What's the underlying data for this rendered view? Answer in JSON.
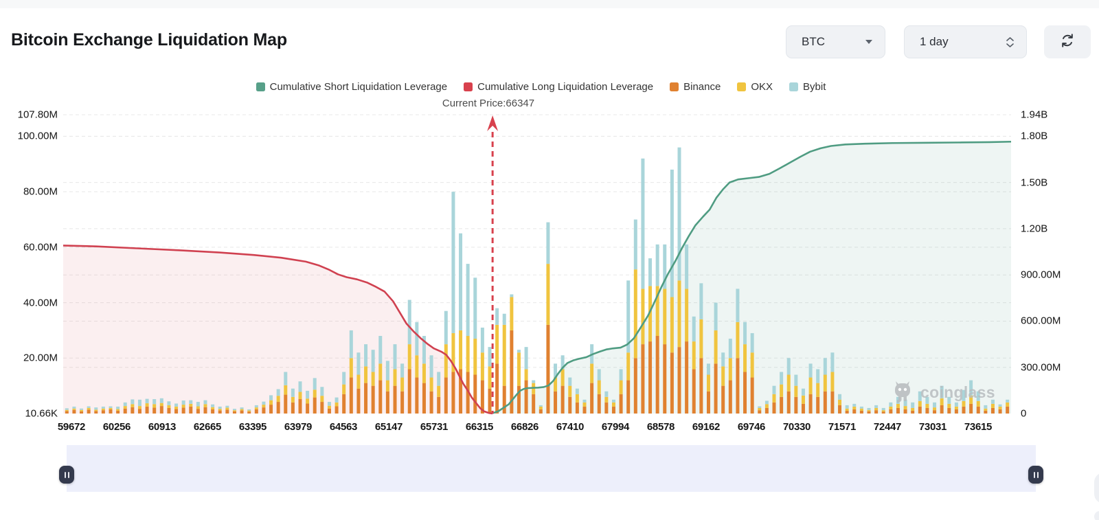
{
  "header": {
    "title": "Bitcoin Exchange Liquidation Map"
  },
  "controls": {
    "symbol_select": {
      "value": "BTC"
    },
    "interval_select": {
      "value": "1 day"
    },
    "refresh_icon": "refresh-arrows"
  },
  "legend": {
    "items": [
      {
        "label": "Cumulative Short Liquidation Leverage",
        "color": "#57a089"
      },
      {
        "label": "Cumulative Long Liquidation Leverage",
        "color": "#d8414d"
      },
      {
        "label": "Binance",
        "color": "#e08130"
      },
      {
        "label": "OKX",
        "color": "#f0c43f"
      },
      {
        "label": "Bybit",
        "color": "#a9d5da"
      }
    ]
  },
  "annotation": {
    "current_price_label": "Current Price:66347"
  },
  "watermark": {
    "text": "coinglass"
  },
  "chart_data": {
    "type": "bar",
    "title": "Bitcoin Exchange Liquidation Map",
    "grid": true,
    "legend_position": "top",
    "x_axis_labels": [
      "59672",
      "60256",
      "60913",
      "62665",
      "63395",
      "63979",
      "64563",
      "65147",
      "65731",
      "66315",
      "66826",
      "67410",
      "67994",
      "68578",
      "69162",
      "69746",
      "70330",
      "71571",
      "72447",
      "73031",
      "73615"
    ],
    "left_axis": {
      "unit": "M",
      "max": 107.8,
      "ticks": [
        {
          "label": "107.80M",
          "value": 107.8
        },
        {
          "label": "100.00M",
          "value": 100
        },
        {
          "label": "80.00M",
          "value": 80
        },
        {
          "label": "60.00M",
          "value": 60
        },
        {
          "label": "40.00M",
          "value": 40
        },
        {
          "label": "20.00M",
          "value": 20
        },
        {
          "label": "10.66K",
          "value": 0
        }
      ]
    },
    "right_axis": {
      "unit": "M",
      "max": 1940,
      "ticks": [
        {
          "label": "1.94B",
          "value": 1940
        },
        {
          "label": "1.80B",
          "value": 1800
        },
        {
          "label": "1.50B",
          "value": 1500
        },
        {
          "label": "1.20B",
          "value": 1200
        },
        {
          "label": "900.00M",
          "value": 900
        },
        {
          "label": "600.00M",
          "value": 600
        },
        {
          "label": "300.00M",
          "value": 300
        },
        {
          "label": "0",
          "value": 0
        }
      ]
    },
    "current_price_marker": {
      "value": 66347,
      "x_fraction": 0.453,
      "color": "#d8414d"
    },
    "bars": {
      "stack_order": [
        "Binance",
        "OKX",
        "Bybit"
      ],
      "colors": [
        "#e08130",
        "#f0c43f",
        "#a9d5da"
      ],
      "unit": "M",
      "values": [
        [
          0.9,
          0.4,
          0.6
        ],
        [
          1.3,
          0.5,
          0.7
        ],
        [
          0.8,
          0.5,
          0.5
        ],
        [
          1.4,
          0.6,
          0.6
        ],
        [
          0.9,
          0.5,
          0.8
        ],
        [
          1.2,
          0.6,
          0.7
        ],
        [
          1.5,
          0.5,
          0.6
        ],
        [
          1.0,
          0.6,
          0.9
        ],
        [
          1.8,
          0.9,
          1.3
        ],
        [
          2.3,
          1.1,
          1.7
        ],
        [
          1.7,
          1.0,
          2.3
        ],
        [
          2.5,
          1.2,
          1.6
        ],
        [
          2.1,
          1.3,
          1.8
        ],
        [
          2.7,
          1.1,
          1.7
        ],
        [
          2.0,
          1.0,
          1.4
        ],
        [
          1.6,
          0.9,
          1.1
        ],
        [
          2.1,
          1.1,
          1.5
        ],
        [
          2.5,
          1.0,
          1.3
        ],
        [
          1.7,
          0.9,
          1.6
        ],
        [
          2.3,
          1.1,
          1.4
        ],
        [
          1.5,
          0.8,
          1.0
        ],
        [
          1.1,
          0.6,
          0.8
        ],
        [
          1.4,
          0.7,
          0.7
        ],
        [
          0.8,
          0.4,
          0.5
        ],
        [
          1.1,
          0.5,
          0.6
        ],
        [
          0.7,
          0.4,
          0.4
        ],
        [
          1.5,
          0.7,
          0.8
        ],
        [
          2.2,
          1.0,
          1.1
        ],
        [
          3.2,
          1.6,
          1.8
        ],
        [
          4.2,
          2.2,
          2.4
        ],
        [
          6.8,
          3.4,
          4.8
        ],
        [
          4.0,
          2.0,
          3.0
        ],
        [
          5.2,
          2.6,
          3.8
        ],
        [
          3.6,
          1.8,
          2.8
        ],
        [
          5.8,
          2.8,
          4.2
        ],
        [
          4.2,
          2.2,
          3.2
        ],
        [
          1.8,
          1.0,
          1.4
        ],
        [
          2.6,
          1.4,
          1.8
        ],
        [
          7,
          3.5,
          4.5
        ],
        [
          13,
          7,
          10
        ],
        [
          9,
          5,
          8
        ],
        [
          11,
          6,
          8
        ],
        [
          10,
          5,
          8
        ],
        [
          12,
          6,
          10
        ],
        [
          8,
          4,
          7
        ],
        [
          10,
          6,
          9
        ],
        [
          8,
          5,
          5
        ],
        [
          16,
          9,
          16
        ],
        [
          13,
          8,
          12
        ],
        [
          11,
          7,
          10
        ],
        [
          8,
          5,
          8
        ],
        [
          6,
          4,
          5
        ],
        [
          13,
          12,
          12
        ],
        [
          15,
          14,
          51
        ],
        [
          16,
          14,
          35
        ],
        [
          15,
          13,
          26
        ],
        [
          14,
          13,
          22
        ],
        [
          12,
          10,
          9
        ],
        [
          9,
          8,
          7
        ],
        [
          18,
          14,
          6
        ],
        [
          10,
          22,
          4
        ],
        [
          30,
          12,
          1
        ],
        [
          10,
          12,
          1
        ],
        [
          12,
          4,
          8
        ],
        [
          7,
          4,
          1
        ],
        [
          1.5,
          1,
          0.5
        ],
        [
          32,
          22,
          15
        ],
        [
          8,
          5,
          5
        ],
        [
          10,
          6,
          5
        ],
        [
          6,
          4,
          3
        ],
        [
          4,
          3,
          2
        ],
        [
          2.5,
          1.5,
          1
        ],
        [
          11,
          7,
          7
        ],
        [
          7,
          5,
          4
        ],
        [
          4,
          2,
          2
        ],
        [
          2.5,
          1.5,
          1
        ],
        [
          7,
          5,
          4
        ],
        [
          12,
          10,
          26
        ],
        [
          20,
          32,
          18
        ],
        [
          25,
          20,
          47
        ],
        [
          26,
          20,
          10
        ],
        [
          28,
          18,
          15
        ],
        [
          25,
          20,
          16
        ],
        [
          22,
          20,
          46
        ],
        [
          24,
          24,
          48
        ],
        [
          26,
          19,
          16
        ],
        [
          16,
          10,
          9
        ],
        [
          20,
          14,
          13
        ],
        [
          8,
          6,
          4
        ],
        [
          18,
          12,
          10
        ],
        [
          10,
          7,
          5
        ],
        [
          12,
          8,
          7
        ],
        [
          20,
          13,
          12
        ],
        [
          15,
          10,
          8
        ],
        [
          13,
          9,
          7
        ],
        [
          1.2,
          0.8,
          0.6
        ],
        [
          2,
          1.4,
          1.2
        ],
        [
          4,
          3,
          3
        ],
        [
          6,
          4.5,
          4.5
        ],
        [
          8,
          6,
          6
        ],
        [
          6,
          4,
          4
        ],
        [
          3.5,
          3,
          2.5
        ],
        [
          7,
          6,
          5
        ],
        [
          6,
          5,
          5
        ],
        [
          8,
          6,
          6
        ],
        [
          8,
          7,
          7
        ],
        [
          3,
          2,
          2
        ],
        [
          1,
          0.8,
          1.2
        ],
        [
          1.5,
          1,
          1
        ],
        [
          1,
          0.8,
          0.7
        ],
        [
          0.8,
          0.5,
          0.7
        ],
        [
          1.2,
          0.8,
          1
        ],
        [
          0.7,
          0.5,
          0.8
        ],
        [
          1.5,
          1,
          1.5
        ],
        [
          2,
          1.5,
          2.5
        ],
        [
          1.5,
          1.2,
          2.3
        ],
        [
          1,
          1,
          2
        ],
        [
          2.5,
          2,
          3.5
        ],
        [
          2,
          1.5,
          2.5
        ],
        [
          1.2,
          1,
          1.8
        ],
        [
          3,
          2.5,
          4.5
        ],
        [
          2,
          1.5,
          2.5
        ],
        [
          1.5,
          1,
          1.5
        ],
        [
          2.5,
          2,
          4
        ],
        [
          3.5,
          3,
          5.5
        ],
        [
          2.5,
          2,
          3.5
        ],
        [
          1,
          0.8,
          1.2
        ],
        [
          2,
          1.5,
          1.5
        ],
        [
          1.5,
          1,
          0.8
        ],
        [
          2.5,
          1.5,
          1
        ]
      ]
    },
    "long_line": {
      "name": "Cumulative Long Liquidation Leverage",
      "axis": "left",
      "color": "#d04150",
      "fill": "rgba(214,69,80,0.085)",
      "points": [
        [
          0.0,
          60.6
        ],
        [
          0.035,
          60.3
        ],
        [
          0.078,
          59.6
        ],
        [
          0.122,
          58.9
        ],
        [
          0.165,
          58.1
        ],
        [
          0.201,
          57.2
        ],
        [
          0.23,
          56.2
        ],
        [
          0.256,
          54.8
        ],
        [
          0.27,
          53.4
        ],
        [
          0.281,
          51.8
        ],
        [
          0.29,
          50.2
        ],
        [
          0.299,
          49.2
        ],
        [
          0.31,
          48.4
        ],
        [
          0.321,
          47.2
        ],
        [
          0.33,
          45.7
        ],
        [
          0.339,
          44.0
        ],
        [
          0.348,
          40.5
        ],
        [
          0.355,
          36.5
        ],
        [
          0.362,
          32.5
        ],
        [
          0.37,
          29.5
        ],
        [
          0.377,
          27.2
        ],
        [
          0.384,
          25.2
        ],
        [
          0.391,
          23.5
        ],
        [
          0.399,
          22.3
        ],
        [
          0.404,
          21.2
        ],
        [
          0.409,
          19.0
        ],
        [
          0.414,
          16.2
        ],
        [
          0.418,
          13.5
        ],
        [
          0.422,
          10.8
        ],
        [
          0.427,
          8.2
        ],
        [
          0.431,
          5.8
        ],
        [
          0.436,
          3.6
        ],
        [
          0.44,
          1.9
        ],
        [
          0.444,
          0.8
        ],
        [
          0.449,
          0.2
        ],
        [
          0.453,
          0.0
        ]
      ]
    },
    "short_line": {
      "name": "Cumulative Short Liquidation Leverage",
      "axis": "right",
      "color": "#4f9c82",
      "fill": "rgba(84,158,134,0.10)",
      "points": [
        [
          0.453,
          2
        ],
        [
          0.459,
          15
        ],
        [
          0.464,
          35
        ],
        [
          0.47,
          60
        ],
        [
          0.474,
          90
        ],
        [
          0.478,
          120
        ],
        [
          0.482,
          148
        ],
        [
          0.486,
          160
        ],
        [
          0.49,
          165
        ],
        [
          0.496,
          167
        ],
        [
          0.501,
          168
        ],
        [
          0.507,
          172
        ],
        [
          0.512,
          182
        ],
        [
          0.517,
          212
        ],
        [
          0.522,
          258
        ],
        [
          0.527,
          298
        ],
        [
          0.532,
          328
        ],
        [
          0.538,
          345
        ],
        [
          0.544,
          355
        ],
        [
          0.552,
          366
        ],
        [
          0.559,
          386
        ],
        [
          0.566,
          402
        ],
        [
          0.573,
          416
        ],
        [
          0.58,
          423
        ],
        [
          0.588,
          428
        ],
        [
          0.595,
          448
        ],
        [
          0.602,
          488
        ],
        [
          0.609,
          556
        ],
        [
          0.617,
          636
        ],
        [
          0.624,
          726
        ],
        [
          0.631,
          820
        ],
        [
          0.638,
          906
        ],
        [
          0.646,
          992
        ],
        [
          0.653,
          1076
        ],
        [
          0.66,
          1152
        ],
        [
          0.667,
          1222
        ],
        [
          0.675,
          1278
        ],
        [
          0.682,
          1324
        ],
        [
          0.689,
          1400
        ],
        [
          0.696,
          1455
        ],
        [
          0.703,
          1500
        ],
        [
          0.712,
          1520
        ],
        [
          0.723,
          1528
        ],
        [
          0.734,
          1536
        ],
        [
          0.745,
          1556
        ],
        [
          0.756,
          1592
        ],
        [
          0.767,
          1630
        ],
        [
          0.778,
          1668
        ],
        [
          0.788,
          1700
        ],
        [
          0.799,
          1722
        ],
        [
          0.81,
          1737
        ],
        [
          0.825,
          1747
        ],
        [
          0.846,
          1752
        ],
        [
          0.875,
          1756
        ],
        [
          0.912,
          1758
        ],
        [
          0.948,
          1760
        ],
        [
          0.977,
          1762
        ],
        [
          1.0,
          1765
        ]
      ]
    }
  },
  "brush": {
    "left_handle": "pause-handle",
    "right_handle": "pause-handle"
  }
}
